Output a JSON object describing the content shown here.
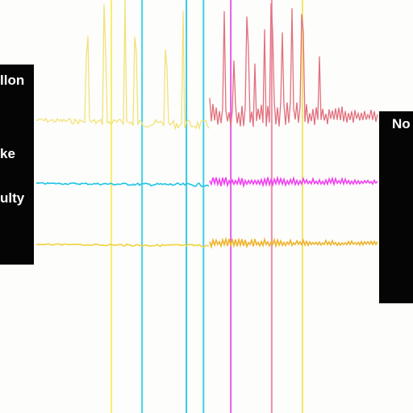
{
  "chart_data": {
    "type": "line",
    "title": "",
    "xlabel": "",
    "ylabel": "",
    "grid": false,
    "legend": "none",
    "x_range": [
      0,
      100
    ],
    "series": [
      {
        "color_left": "#f2e27a",
        "color_right": "#e2707e",
        "baseline": 0.0,
        "amplitude": 1.0,
        "spikes_left": [
          15,
          20,
          26,
          29,
          38,
          43
        ],
        "spikes_right": [
          55,
          58,
          62,
          64,
          67,
          69,
          72,
          75,
          78,
          83
        ]
      },
      {
        "color_left": "#1ec4e6",
        "color_right": "#f23ff2",
        "baseline": 0.0,
        "amplitude": 0.25
      },
      {
        "color_left": "#f1d23c",
        "color_right": "#efb32a",
        "baseline": 0.0,
        "amplitude": 0.18
      }
    ],
    "vertical_markers": [
      {
        "x": 22,
        "color": "#f6ef6c"
      },
      {
        "x": 31,
        "color": "#3fd3ea"
      },
      {
        "x": 44,
        "color": "#36c9e6"
      },
      {
        "x": 49,
        "color": "#3fd0e8"
      },
      {
        "x": 57,
        "color": "#e65ce6"
      },
      {
        "x": 69,
        "color": "#f08da8"
      },
      {
        "x": 78,
        "color": "#f2e46a"
      }
    ]
  },
  "labels": {
    "left_1": "llon",
    "left_2": "ke",
    "left_3": "ulty",
    "right_1": "No"
  },
  "colors": {
    "panel": "#050505",
    "background": "#fdfdfb"
  }
}
